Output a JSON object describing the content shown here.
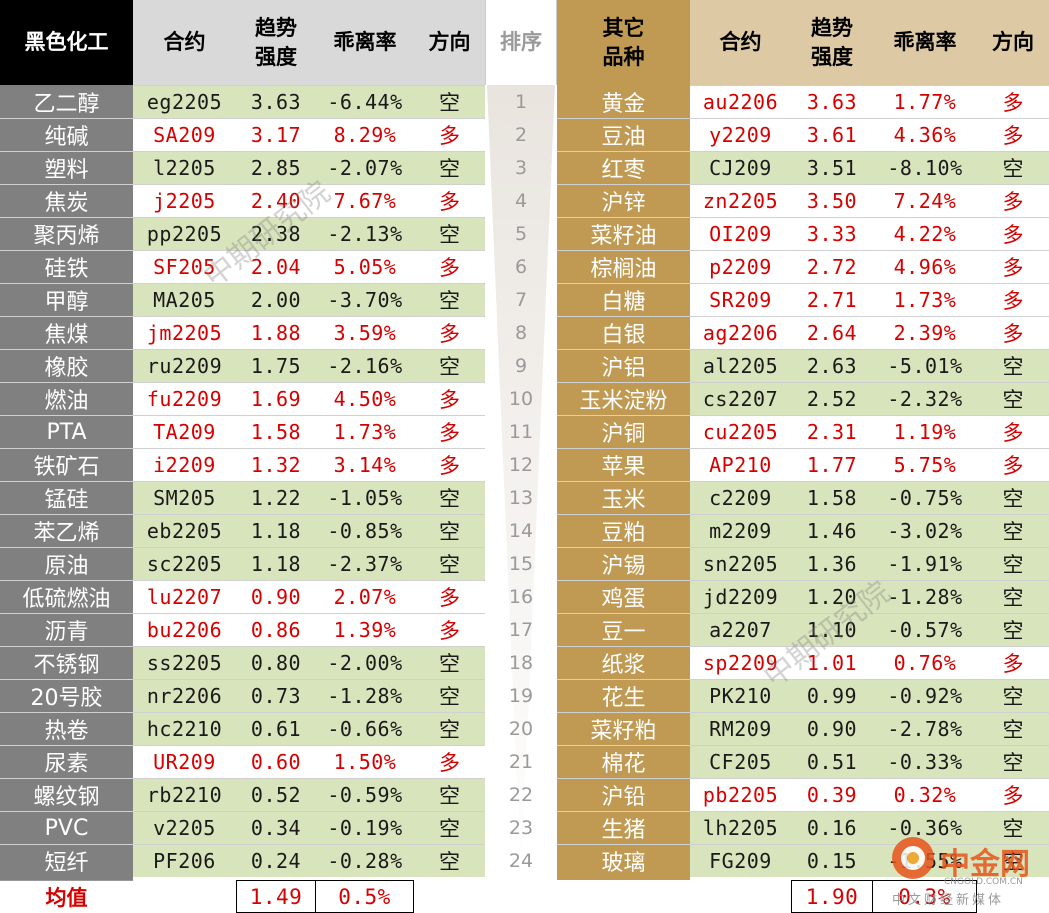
{
  "left_header": {
    "category": "黑色化工",
    "contract": "合约",
    "trend_line1": "趋势",
    "trend_line2": "强度",
    "deviation": "乖离率",
    "direction": "方向"
  },
  "rank_header": "排序",
  "right_header": {
    "category_line1": "其它",
    "category_line2": "品种",
    "contract": "合约",
    "trend_line1": "趋势",
    "trend_line2": "强度",
    "deviation": "乖离率",
    "direction": "方向"
  },
  "colors": {
    "left_header_bg": "#000000",
    "left_name_bg": "#808080",
    "right_name_bg": "#c09a52",
    "right_header_bg": "#ddc9a3",
    "long_bg": "#ffffff",
    "short_bg": "#d8e4bc",
    "long_text": "#d60000",
    "short_text": "#1a1a1a",
    "avg_label": "#d60000"
  },
  "left_rows": [
    {
      "name": "乙二醇",
      "contract": "eg2205",
      "trend": "3.63",
      "deviation": "-6.44%",
      "direction": "空"
    },
    {
      "name": "纯碱",
      "contract": "SA209",
      "trend": "3.17",
      "deviation": "8.29%",
      "direction": "多"
    },
    {
      "name": "塑料",
      "contract": "l2205",
      "trend": "2.85",
      "deviation": "-2.07%",
      "direction": "空"
    },
    {
      "name": "焦炭",
      "contract": "j2205",
      "trend": "2.40",
      "deviation": "7.67%",
      "direction": "多"
    },
    {
      "name": "聚丙烯",
      "contract": "pp2205",
      "trend": "2.38",
      "deviation": "-2.13%",
      "direction": "空"
    },
    {
      "name": "硅铁",
      "contract": "SF205",
      "trend": "2.04",
      "deviation": "5.05%",
      "direction": "多"
    },
    {
      "name": "甲醇",
      "contract": "MA205",
      "trend": "2.00",
      "deviation": "-3.70%",
      "direction": "空"
    },
    {
      "name": "焦煤",
      "contract": "jm2205",
      "trend": "1.88",
      "deviation": "3.59%",
      "direction": "多"
    },
    {
      "name": "橡胶",
      "contract": "ru2209",
      "trend": "1.75",
      "deviation": "-2.16%",
      "direction": "空"
    },
    {
      "name": "燃油",
      "contract": "fu2209",
      "trend": "1.69",
      "deviation": "4.50%",
      "direction": "多"
    },
    {
      "name": "PTA",
      "contract": "TA209",
      "trend": "1.58",
      "deviation": "1.73%",
      "direction": "多"
    },
    {
      "name": "铁矿石",
      "contract": "i2209",
      "trend": "1.32",
      "deviation": "3.14%",
      "direction": "多"
    },
    {
      "name": "锰硅",
      "contract": "SM205",
      "trend": "1.22",
      "deviation": "-1.05%",
      "direction": "空"
    },
    {
      "name": "苯乙烯",
      "contract": "eb2205",
      "trend": "1.18",
      "deviation": "-0.85%",
      "direction": "空"
    },
    {
      "name": "原油",
      "contract": "sc2205",
      "trend": "1.18",
      "deviation": "-2.37%",
      "direction": "空"
    },
    {
      "name": "低硫燃油",
      "contract": "lu2207",
      "trend": "0.90",
      "deviation": "2.07%",
      "direction": "多"
    },
    {
      "name": "沥青",
      "contract": "bu2206",
      "trend": "0.86",
      "deviation": "1.39%",
      "direction": "多"
    },
    {
      "name": "不锈钢",
      "contract": "ss2205",
      "trend": "0.80",
      "deviation": "-2.00%",
      "direction": "空"
    },
    {
      "name": "20号胶",
      "contract": "nr2206",
      "trend": "0.73",
      "deviation": "-1.28%",
      "direction": "空"
    },
    {
      "name": "热卷",
      "contract": "hc2210",
      "trend": "0.61",
      "deviation": "-0.66%",
      "direction": "空"
    },
    {
      "name": "尿素",
      "contract": "UR209",
      "trend": "0.60",
      "deviation": "1.50%",
      "direction": "多"
    },
    {
      "name": "螺纹钢",
      "contract": "rb2210",
      "trend": "0.52",
      "deviation": "-0.59%",
      "direction": "空"
    },
    {
      "name": "PVC",
      "contract": "v2205",
      "trend": "0.34",
      "deviation": "-0.19%",
      "direction": "空"
    },
    {
      "name": "短纤",
      "contract": "PF206",
      "trend": "0.24",
      "deviation": "-0.28%",
      "direction": "空"
    }
  ],
  "ranks": [
    "1",
    "2",
    "3",
    "4",
    "5",
    "6",
    "7",
    "8",
    "9",
    "10",
    "11",
    "12",
    "13",
    "14",
    "15",
    "16",
    "17",
    "18",
    "19",
    "20",
    "21",
    "22",
    "23",
    "24"
  ],
  "right_rows": [
    {
      "name": "黄金",
      "contract": "au2206",
      "trend": "3.63",
      "deviation": "1.77%",
      "direction": "多"
    },
    {
      "name": "豆油",
      "contract": "y2209",
      "trend": "3.61",
      "deviation": "4.36%",
      "direction": "多"
    },
    {
      "name": "红枣",
      "contract": "CJ209",
      "trend": "3.51",
      "deviation": "-8.10%",
      "direction": "空"
    },
    {
      "name": "沪锌",
      "contract": "zn2205",
      "trend": "3.50",
      "deviation": "7.24%",
      "direction": "多"
    },
    {
      "name": "菜籽油",
      "contract": "OI209",
      "trend": "3.33",
      "deviation": "4.22%",
      "direction": "多"
    },
    {
      "name": "棕榈油",
      "contract": "p2209",
      "trend": "2.72",
      "deviation": "4.96%",
      "direction": "多"
    },
    {
      "name": "白糖",
      "contract": "SR209",
      "trend": "2.71",
      "deviation": "1.73%",
      "direction": "多"
    },
    {
      "name": "白银",
      "contract": "ag2206",
      "trend": "2.64",
      "deviation": "2.39%",
      "direction": "多"
    },
    {
      "name": "沪铝",
      "contract": "al2205",
      "trend": "2.63",
      "deviation": "-5.01%",
      "direction": "空"
    },
    {
      "name": "玉米淀粉",
      "contract": "cs2207",
      "trend": "2.52",
      "deviation": "-2.32%",
      "direction": "空"
    },
    {
      "name": "沪铜",
      "contract": "cu2205",
      "trend": "2.31",
      "deviation": "1.19%",
      "direction": "多"
    },
    {
      "name": "苹果",
      "contract": "AP210",
      "trend": "1.77",
      "deviation": "5.75%",
      "direction": "多"
    },
    {
      "name": "玉米",
      "contract": "c2209",
      "trend": "1.58",
      "deviation": "-0.75%",
      "direction": "空"
    },
    {
      "name": "豆粕",
      "contract": "m2209",
      "trend": "1.46",
      "deviation": "-3.02%",
      "direction": "空"
    },
    {
      "name": "沪锡",
      "contract": "sn2205",
      "trend": "1.36",
      "deviation": "-1.91%",
      "direction": "空"
    },
    {
      "name": "鸡蛋",
      "contract": "jd2209",
      "trend": "1.20",
      "deviation": "-1.28%",
      "direction": "空"
    },
    {
      "name": "豆一",
      "contract": "a2207",
      "trend": "1.10",
      "deviation": "-0.57%",
      "direction": "空"
    },
    {
      "name": "纸浆",
      "contract": "sp2209",
      "trend": "1.01",
      "deviation": "0.76%",
      "direction": "多"
    },
    {
      "name": "花生",
      "contract": "PK210",
      "trend": "0.99",
      "deviation": "-0.92%",
      "direction": "空"
    },
    {
      "name": "菜籽粕",
      "contract": "RM209",
      "trend": "0.90",
      "deviation": "-2.78%",
      "direction": "空"
    },
    {
      "name": "棉花",
      "contract": "CF205",
      "trend": "0.51",
      "deviation": "-0.33%",
      "direction": "空"
    },
    {
      "name": "沪铅",
      "contract": "pb2205",
      "trend": "0.39",
      "deviation": "0.32%",
      "direction": "多"
    },
    {
      "name": "生猪",
      "contract": "lh2205",
      "trend": "0.16",
      "deviation": "-0.36%",
      "direction": "空"
    },
    {
      "name": "玻璃",
      "contract": "FG209",
      "trend": "0.15",
      "deviation": "-1.55%",
      "direction": "空"
    }
  ],
  "footer": {
    "label": "均值",
    "left_trend": "1.49",
    "left_deviation": "0.5%",
    "right_trend": "1.90",
    "right_deviation": "0.3%"
  },
  "watermarks": {
    "text": "中期研究院",
    "logo_text": "中金网",
    "logo_sub": "CNGOLD.COM.CN",
    "logo_tagline": "中文财经新媒体"
  }
}
